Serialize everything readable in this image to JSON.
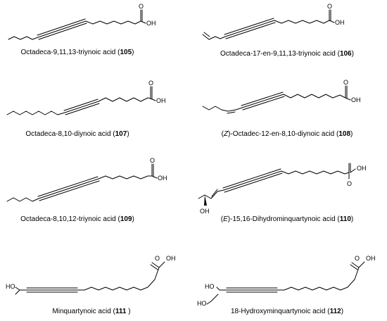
{
  "compounds": [
    {
      "caption": [
        "Octadeca-9,11,13-triynoic acid (",
        "105",
        ")"
      ],
      "label": "OH"
    },
    {
      "caption": [
        "Octadeca-17-en-9,11,13-triynoic acid (",
        "106",
        ")"
      ],
      "label": "OH"
    },
    {
      "caption": [
        "Octadeca-8,10-diynoic acid (",
        "107",
        ")"
      ],
      "label": "OH"
    },
    {
      "caption": [
        "(",
        "Z",
        ")-Octadec-12-en-8,10-diynoic acid (",
        "108",
        ")"
      ],
      "label": "OH"
    },
    {
      "caption": [
        "Octadeca-8,10,12-triynoic acid (",
        "109",
        ")"
      ],
      "label": "OH"
    },
    {
      "caption": [
        "(",
        "E",
        ")-15,16-Dihydrominquartynoic acid (",
        "110",
        ")"
      ],
      "label": "OH",
      "label2": "OH"
    },
    {
      "caption": [
        "Minquartynoic acid (",
        "111",
        " )"
      ],
      "label": "OH",
      "label2": "HO"
    },
    {
      "caption": [
        "18-Hydroxyminquartynoic acid (",
        "112",
        ")"
      ],
      "label": "OH",
      "label2": "HO",
      "label3": "HO"
    }
  ],
  "atom_o": "O"
}
